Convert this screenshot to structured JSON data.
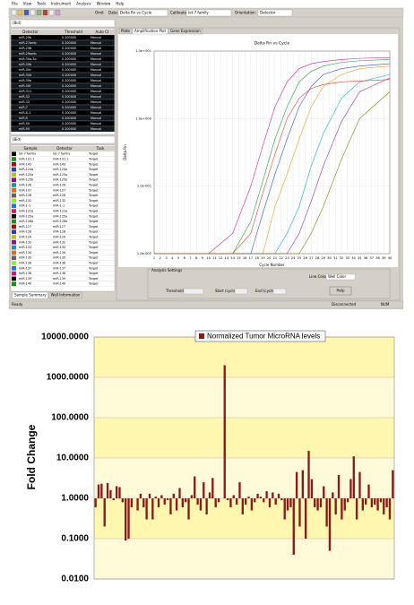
{
  "window": {
    "menu": [
      "File",
      "View",
      "Tools",
      "Instrument",
      "Analysis",
      "Window",
      "Help"
    ],
    "toolbar": {
      "omit": "Omit",
      "data_label": "Data:",
      "data_value": "Delta Rn vs Cycle",
      "calibrator_label": "Calibrator:",
      "calibrator_value": "let-7 family",
      "orientation_label": "Orientation:",
      "orientation_value": "Detector"
    },
    "tabs": [
      "Plate",
      "Amplification Plot",
      "Gene Expression"
    ],
    "status": [
      "Ready",
      "Disconnected",
      "NUM"
    ]
  },
  "detector_panel": {
    "filter": "(Bid)",
    "headers": [
      "Detector",
      "Threshold",
      "Auto Ct"
    ],
    "rows": [
      [
        "miR-29b",
        "0.200000",
        "Manual"
      ],
      [
        "miR-27amb",
        "0.200000",
        "Manual"
      ],
      [
        "miR-29B",
        "0.200000",
        "Manual"
      ],
      [
        "miR-29amb",
        "0.200000",
        "Manual"
      ],
      [
        "miR-30a-3p",
        "0.200000",
        "Manual"
      ],
      [
        "miR-30b",
        "0.200000",
        "Manual"
      ],
      [
        "miR-30c",
        "0.200000",
        "Manual"
      ],
      [
        "miR-30d",
        "0.200000",
        "Manual"
      ],
      [
        "miR-30e",
        "0.200000",
        "Manual"
      ],
      [
        "miR-30f",
        "0.200000",
        "Manual"
      ],
      [
        "miR-311",
        "0.200000",
        "Manual"
      ],
      [
        "miR-32",
        "0.200000",
        "Manual"
      ],
      [
        "miR-33",
        "0.200000",
        "Manual"
      ],
      [
        "miR-7",
        "0.200000",
        "Manual"
      ],
      [
        "miR-8-1",
        "0.200000",
        "Manual"
      ],
      [
        "miR-9",
        "0.200000",
        "Manual"
      ],
      [
        "miR-90",
        "0.200000",
        "Manual"
      ],
      [
        "miR-95",
        "0.200000",
        "Manual"
      ]
    ]
  },
  "sample_panel": {
    "filter": "(Bid)",
    "headers": [
      "Sample",
      "Detector",
      "Task"
    ],
    "rows": [
      [
        "let-7 family",
        "let-7 family",
        "Target"
      ],
      [
        "miR-101.1",
        "miR-101.1",
        "Target"
      ],
      [
        "miR-143",
        "miR-143",
        "Target"
      ],
      [
        "miR-124a",
        "miR-124a",
        "Target"
      ],
      [
        "miR-125a",
        "miR-125a",
        "Target"
      ],
      [
        "miR-125b",
        "miR-125b",
        "Target"
      ],
      [
        "miR-126",
        "miR-126",
        "Target"
      ],
      [
        "miR-107",
        "miR-107",
        "Target"
      ],
      [
        "miR-128",
        "miR-128",
        "Target"
      ],
      [
        "miR-132",
        "miR-132",
        "Target"
      ],
      [
        "miR-1-1",
        "miR-1-1",
        "Target"
      ],
      [
        "miR-122a",
        "miR-122a",
        "Target"
      ],
      [
        "miR-125a",
        "miR-125a",
        "Target"
      ],
      [
        "miR-126b",
        "miR-126b",
        "Target"
      ],
      [
        "miR-127",
        "miR-127",
        "Target"
      ],
      [
        "miR-128",
        "miR-128",
        "Target"
      ],
      [
        "miR-129",
        "miR-129",
        "Target"
      ],
      [
        "miR-132",
        "miR-132",
        "Target"
      ],
      [
        "miR-133",
        "miR-133",
        "Target"
      ],
      [
        "miR-134",
        "miR-134",
        "Target"
      ],
      [
        "miR-135",
        "miR-135",
        "Target"
      ],
      [
        "miR-136",
        "miR-136",
        "Target"
      ],
      [
        "miR-137",
        "miR-137",
        "Target"
      ],
      [
        "miR-138",
        "miR-138",
        "Target"
      ],
      [
        "miR-139",
        "miR-139",
        "Target"
      ],
      [
        "miR-140",
        "miR-140",
        "Target"
      ]
    ],
    "tabs": [
      "Sample Summary",
      "Well Information"
    ]
  },
  "analysis_settings": {
    "title": "Analysis Settings",
    "threshold": "Threshold:",
    "start": "Start (cycle):",
    "end": "End (cycle):",
    "line_color_label": "Line Color:",
    "line_color_value": "Well Color",
    "help": "Help"
  },
  "chart_data": [
    {
      "type": "line",
      "title": "Delta Rn vs Cycle",
      "x_label": "Cycle Number",
      "y_label": "Delta Rn",
      "log_y": true,
      "grid": true,
      "x": [
        1,
        5,
        10,
        14,
        17,
        19,
        21,
        23,
        25,
        27,
        29,
        32,
        35,
        40
      ],
      "xlim": [
        1,
        40
      ],
      "xticks": [
        1,
        2,
        3,
        4,
        5,
        6,
        7,
        8,
        9,
        10,
        11,
        12,
        13,
        14,
        15,
        16,
        17,
        18,
        19,
        20,
        21,
        22,
        23,
        24,
        25,
        26,
        27,
        28,
        29,
        30,
        31,
        32,
        33,
        34,
        35,
        36,
        37,
        38,
        39,
        40
      ],
      "ylim": [
        0.01,
        10
      ],
      "yticks": [
        {
          "value": 0.01,
          "label": "1.0e-002"
        },
        {
          "value": 0.1,
          "label": "1.0e-001"
        },
        {
          "value": 1,
          "label": "1.0e+000"
        },
        {
          "value": 10,
          "label": "1.0e+001"
        }
      ],
      "series": [
        {
          "color": "#d02090",
          "values": [
            0.01,
            0.01,
            0.01,
            0.02,
            0.1,
            0.4,
            1.5,
            3.5,
            5.5,
            6.5,
            7,
            7.5,
            7.8,
            8
          ]
        },
        {
          "color": "#20a040",
          "values": [
            0.01,
            0.01,
            0.01,
            0.01,
            0.03,
            0.12,
            0.5,
            1.5,
            3.5,
            5,
            6,
            6.8,
            7.2,
            7.5
          ]
        },
        {
          "color": "#3050e0",
          "values": [
            0.01,
            0.01,
            0.01,
            0.01,
            0.01,
            0.04,
            0.15,
            0.5,
            1.5,
            3,
            4.5,
            5.5,
            6,
            6.5
          ]
        },
        {
          "color": "#e0a020",
          "values": [
            0.01,
            0.01,
            0.01,
            0.01,
            0.01,
            0.01,
            0.05,
            0.15,
            0.5,
            1.5,
            3,
            4.5,
            5.5,
            6
          ]
        },
        {
          "color": "#10b0c0",
          "values": [
            0.01,
            0.01,
            0.01,
            0.01,
            0.01,
            0.01,
            0.01,
            0.02,
            0.05,
            0.2,
            0.6,
            2,
            3.5,
            4.5
          ]
        },
        {
          "color": "#9030c0",
          "values": [
            0.01,
            0.01,
            0.01,
            0.01,
            0.01,
            0.01,
            0.01,
            0.01,
            0.02,
            0.06,
            0.2,
            0.9,
            2.5,
            4
          ]
        },
        {
          "color": "#e04030",
          "values": [
            0.01,
            0.01,
            0.01,
            0.01,
            0.02,
            0.08,
            0.3,
            1,
            2,
            2.8,
            3.2,
            3.5,
            3.6,
            3.8
          ]
        },
        {
          "color": "#808000",
          "values": [
            0.01,
            0.01,
            0.01,
            0.01,
            0.01,
            0.01,
            0.01,
            0.01,
            0.01,
            0.02,
            0.05,
            0.25,
            1,
            2.5
          ]
        }
      ]
    },
    {
      "type": "bar",
      "y_label": "Fold Change",
      "log_y": true,
      "legend": "top",
      "categories": [
        null,
        null,
        null,
        null,
        null,
        null,
        null,
        null,
        null,
        null,
        null,
        null,
        null,
        null,
        null,
        null,
        null,
        null,
        null,
        null,
        null,
        null,
        null,
        null,
        null,
        null,
        null,
        null,
        null,
        null,
        null,
        null,
        null,
        null,
        null,
        null,
        null,
        null,
        null,
        null,
        null,
        null,
        null,
        null,
        null,
        null,
        null,
        null,
        null,
        null,
        null,
        null,
        null,
        null,
        null,
        null,
        null,
        null,
        null,
        null,
        null,
        null,
        null,
        null,
        null,
        null,
        null,
        null,
        null,
        null,
        null,
        null,
        null,
        null,
        null,
        null,
        null,
        null,
        null,
        null,
        null,
        null,
        null,
        null,
        null,
        null,
        null,
        null,
        null,
        null,
        null,
        null,
        null,
        null,
        null,
        null,
        null,
        null,
        null,
        null
      ],
      "ylim": [
        0.01,
        10000
      ],
      "yticks": [
        {
          "value": 0.01,
          "label": "0.0100"
        },
        {
          "value": 0.1,
          "label": "0.1000"
        },
        {
          "value": 1,
          "label": "1.0000"
        },
        {
          "value": 10,
          "label": "10.0000"
        },
        {
          "value": 100,
          "label": "100.0000"
        },
        {
          "value": 1000,
          "label": "1000.0000"
        },
        {
          "value": 10000,
          "label": "10000.0000"
        }
      ],
      "series": [
        {
          "name": "Normalized Tumor MicroRNA levels",
          "color": "#8b1a1a",
          "values": [
            0.6,
            2.2,
            2.3,
            0.2,
            2.4,
            1.6,
            0.9,
            2.0,
            1.9,
            0.8,
            0.09,
            0.1,
            0.6,
            1.0,
            0.5,
            1.3,
            0.6,
            0.3,
            1.3,
            0.3,
            1.1,
            0.6,
            1.2,
            0.7,
            0.9,
            0.4,
            1.3,
            0.5,
            1.8,
            0.6,
            0.8,
            0.3,
            1.2,
            3.5,
            0.7,
            0.5,
            2.5,
            0.4,
            1.4,
            3.2,
            0.6,
            0.8,
            1.0,
            2000,
            0.9,
            0.6,
            1.2,
            0.7,
            2.5,
            0.4,
            0.7,
            1.1,
            0.5,
            0.8,
            1.3,
            1.1,
            0.8,
            1.5,
            0.6,
            1.4,
            0.7,
            1.3,
            0.9,
            0.3,
            0.5,
            0.6,
            0.04,
            4.5,
            0.2,
            5.0,
            0.1,
            15,
            3.0,
            0.6,
            0.5,
            0.6,
            2.0,
            0.2,
            0.05,
            1.4,
            0.4,
            3.8,
            0.3,
            0.5,
            0.8,
            3.0,
            11,
            0.3,
            4.5,
            0.5,
            0.7,
            2.2,
            0.6,
            0.7,
            0.5,
            0.8,
            0.4,
            0.6,
            0.3,
            5.0
          ]
        }
      ]
    }
  ]
}
